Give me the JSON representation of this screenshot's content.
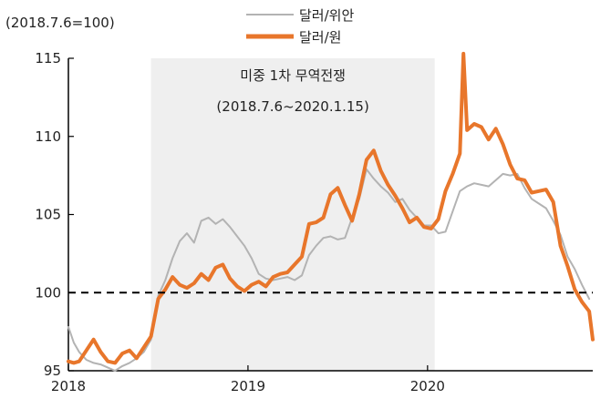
{
  "chart_data": {
    "type": "line",
    "unit_label": "(2018.7.6=100)",
    "xlabel": "",
    "ylabel": "",
    "xlim": [
      2018.0,
      2020.92
    ],
    "ylim": [
      95,
      115
    ],
    "y_ticks": [
      95,
      100,
      105,
      110,
      115
    ],
    "x_ticks": [
      {
        "value": 2018.0,
        "label": "2018"
      },
      {
        "value": 2019.0,
        "label": "2019"
      },
      {
        "value": 2020.0,
        "label": "2020"
      }
    ],
    "reference_line": {
      "y": 100,
      "style": "dashed"
    },
    "shaded_period": {
      "start": 2018.46,
      "end": 2020.04,
      "label_line1": "미중 1차 무역전쟁",
      "label_line2": "(2018.7.6~2020.1.15)"
    },
    "legend_position": "top-center",
    "series": [
      {
        "name": "달러/위안",
        "color": "#b3b3b3",
        "x": [
          2018.0,
          2018.03,
          2018.06,
          2018.1,
          2018.14,
          2018.18,
          2018.22,
          2018.26,
          2018.3,
          2018.34,
          2018.38,
          2018.42,
          2018.46,
          2018.5,
          2018.54,
          2018.58,
          2018.62,
          2018.66,
          2018.7,
          2018.74,
          2018.78,
          2018.82,
          2018.86,
          2018.9,
          2018.94,
          2018.98,
          2019.02,
          2019.06,
          2019.1,
          2019.14,
          2019.18,
          2019.22,
          2019.26,
          2019.3,
          2019.34,
          2019.38,
          2019.42,
          2019.46,
          2019.5,
          2019.54,
          2019.58,
          2019.62,
          2019.66,
          2019.7,
          2019.74,
          2019.78,
          2019.82,
          2019.86,
          2019.9,
          2019.94,
          2019.98,
          2020.02,
          2020.06,
          2020.1,
          2020.14,
          2020.18,
          2020.22,
          2020.26,
          2020.3,
          2020.34,
          2020.38,
          2020.42,
          2020.46,
          2020.5,
          2020.54,
          2020.58,
          2020.62,
          2020.66,
          2020.7,
          2020.74,
          2020.78,
          2020.82,
          2020.86,
          2020.9
        ],
        "values": [
          97.8,
          96.8,
          96.2,
          95.7,
          95.5,
          95.4,
          95.2,
          95.0,
          95.3,
          95.5,
          95.8,
          96.2,
          97.0,
          99.8,
          100.8,
          102.2,
          103.3,
          103.8,
          103.2,
          104.6,
          104.8,
          104.4,
          104.7,
          104.2,
          103.6,
          103.0,
          102.2,
          101.2,
          100.9,
          100.8,
          100.9,
          101.0,
          100.8,
          101.1,
          102.4,
          103.0,
          103.5,
          103.6,
          103.4,
          103.5,
          104.8,
          106.0,
          107.9,
          107.3,
          106.8,
          106.4,
          105.8,
          106.0,
          105.3,
          104.8,
          104.3,
          104.3,
          103.8,
          103.9,
          105.2,
          106.5,
          106.8,
          107.0,
          106.9,
          106.8,
          107.2,
          107.6,
          107.5,
          107.6,
          106.7,
          106.0,
          105.7,
          105.4,
          104.6,
          103.7,
          102.3,
          101.5,
          100.5,
          99.6
        ]
      },
      {
        "name": "달러/원",
        "color": "#e8762b",
        "x": [
          2018.0,
          2018.03,
          2018.06,
          2018.1,
          2018.14,
          2018.18,
          2018.22,
          2018.26,
          2018.3,
          2018.34,
          2018.38,
          2018.42,
          2018.46,
          2018.5,
          2018.54,
          2018.58,
          2018.62,
          2018.66,
          2018.7,
          2018.74,
          2018.78,
          2018.82,
          2018.86,
          2018.9,
          2018.94,
          2018.98,
          2019.02,
          2019.06,
          2019.1,
          2019.14,
          2019.18,
          2019.22,
          2019.26,
          2019.3,
          2019.34,
          2019.38,
          2019.42,
          2019.46,
          2019.5,
          2019.54,
          2019.58,
          2019.62,
          2019.66,
          2019.7,
          2019.74,
          2019.78,
          2019.82,
          2019.86,
          2019.9,
          2019.94,
          2019.98,
          2020.02,
          2020.06,
          2020.1,
          2020.14,
          2020.18,
          2020.2,
          2020.22,
          2020.26,
          2020.3,
          2020.34,
          2020.38,
          2020.42,
          2020.46,
          2020.5,
          2020.54,
          2020.58,
          2020.62,
          2020.66,
          2020.7,
          2020.74,
          2020.78,
          2020.82,
          2020.86,
          2020.9,
          2020.92
        ],
        "values": [
          95.6,
          95.5,
          95.6,
          96.3,
          97.0,
          96.2,
          95.6,
          95.5,
          96.1,
          96.3,
          95.8,
          96.5,
          97.2,
          99.6,
          100.2,
          101.0,
          100.5,
          100.3,
          100.6,
          101.2,
          100.8,
          101.6,
          101.8,
          100.9,
          100.4,
          100.1,
          100.5,
          100.7,
          100.4,
          101.0,
          101.2,
          101.3,
          101.8,
          102.3,
          104.4,
          104.5,
          104.8,
          106.3,
          106.7,
          105.6,
          104.6,
          106.3,
          108.5,
          109.1,
          107.8,
          106.9,
          106.2,
          105.4,
          104.5,
          104.8,
          104.2,
          104.1,
          104.7,
          106.5,
          107.6,
          108.9,
          115.3,
          110.4,
          110.8,
          110.6,
          109.8,
          110.5,
          109.5,
          108.2,
          107.3,
          107.2,
          106.4,
          106.5,
          106.6,
          105.8,
          103.0,
          101.7,
          100.2,
          99.4,
          98.8,
          97.0
        ]
      }
    ]
  }
}
